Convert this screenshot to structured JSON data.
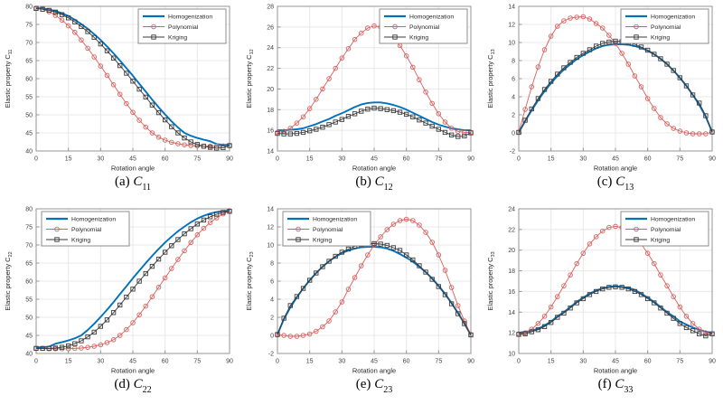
{
  "figure": {
    "xlabel": "Rotation angle",
    "colors": {
      "homogenization": "#0072bd",
      "polynomial": "#d95f5c",
      "kriging": "#3a3a3a",
      "grid": "#e8e8e8",
      "axis": "#949494",
      "tick_text": "#3f3f3f",
      "label_text": "#262626",
      "background": "#ffffff"
    }
  },
  "chart_data": {
    "type": "line",
    "xlabel": "Rotation angle",
    "xlim": [
      0,
      90
    ],
    "xticks": [
      0,
      15,
      30,
      45,
      60,
      75,
      90
    ],
    "series_names": [
      "Homogenization",
      "Polynomial",
      "Kriging"
    ],
    "legend_position_note": "per-chart legend_pos: ne=top-right, nw=top-left",
    "x": [
      0,
      3,
      6,
      9,
      12,
      15,
      18,
      21,
      24,
      27,
      30,
      33,
      36,
      39,
      42,
      45,
      48,
      51,
      54,
      57,
      60,
      63,
      66,
      69,
      72,
      75,
      78,
      81,
      84,
      87,
      90
    ],
    "charts": [
      {
        "caption_prefix": "(a)",
        "caption_symbol": "C",
        "caption_sub": "11",
        "ylabel": "Elastic property C",
        "ylabel_sub": "11",
        "ylim": [
          40,
          80
        ],
        "ytick_step": 5,
        "legend_pos": "ne",
        "homogenization": [
          79.5,
          79.4,
          79.1,
          78.7,
          78.1,
          77.3,
          76.3,
          75.1,
          73.8,
          72.3,
          70.7,
          68.9,
          67.0,
          65.0,
          62.9,
          60.8,
          58.6,
          56.4,
          54.2,
          52.1,
          50.1,
          48.2,
          46.5,
          45.0,
          44.2,
          43.6,
          43.1,
          42.7,
          41.9,
          41.7,
          41.7
        ],
        "polynomial": [
          79.5,
          79.2,
          78.5,
          77.5,
          76.2,
          74.6,
          72.8,
          70.7,
          68.4,
          66.0,
          63.5,
          60.9,
          58.3,
          55.7,
          53.1,
          50.7,
          48.5,
          46.6,
          45.0,
          43.8,
          43.0,
          42.4,
          42.0,
          41.7,
          41.5,
          41.4,
          41.3,
          41.3,
          41.3,
          41.4,
          41.4
        ],
        "kriging": [
          79.4,
          79.2,
          78.9,
          78.4,
          77.7,
          76.8,
          75.7,
          74.4,
          73.0,
          71.4,
          69.6,
          67.7,
          65.7,
          63.6,
          61.5,
          59.3,
          57.1,
          54.9,
          52.7,
          50.6,
          48.6,
          46.7,
          45.0,
          43.6,
          42.5,
          41.8,
          41.3,
          41.0,
          40.8,
          40.9,
          41.5
        ]
      },
      {
        "caption_prefix": "(b)",
        "caption_symbol": "C",
        "caption_sub": "12",
        "ylabel": "Elastic property C",
        "ylabel_sub": "12",
        "ylim": [
          14,
          28
        ],
        "ytick_step": 2,
        "legend_pos": "ne",
        "homogenization": [
          16.0,
          16.0,
          16.05,
          16.1,
          16.2,
          16.4,
          16.6,
          16.85,
          17.1,
          17.4,
          17.65,
          17.95,
          18.25,
          18.5,
          18.65,
          18.7,
          18.7,
          18.6,
          18.45,
          18.25,
          18.0,
          17.7,
          17.4,
          17.1,
          16.8,
          16.55,
          16.35,
          16.2,
          16.1,
          16.0,
          16.0
        ],
        "polynomial": [
          15.8,
          15.9,
          16.2,
          16.7,
          17.3,
          18.1,
          19.0,
          20.0,
          21.0,
          22.0,
          23.0,
          23.9,
          24.8,
          25.4,
          25.9,
          26.1,
          26.0,
          25.6,
          25.0,
          24.2,
          23.2,
          22.1,
          20.9,
          19.7,
          18.6,
          17.6,
          16.8,
          16.2,
          15.9,
          15.8,
          15.8
        ],
        "kriging": [
          15.7,
          15.65,
          15.65,
          15.7,
          15.8,
          15.95,
          16.1,
          16.3,
          16.55,
          16.8,
          17.05,
          17.35,
          17.6,
          17.85,
          18.05,
          18.15,
          18.1,
          18.0,
          17.9,
          17.75,
          17.55,
          17.3,
          17.0,
          16.7,
          16.4,
          16.1,
          15.8,
          15.55,
          15.4,
          15.45,
          15.75
        ]
      },
      {
        "caption_prefix": "(c)",
        "caption_symbol": "C",
        "caption_sub": "13",
        "ylabel": "Elastic property C",
        "ylabel_sub": "13",
        "ylim": [
          -2,
          14
        ],
        "ytick_step": 2,
        "legend_pos": "ne",
        "homogenization": [
          0.05,
          1.3,
          2.5,
          3.6,
          4.6,
          5.5,
          6.3,
          7.0,
          7.6,
          8.15,
          8.6,
          9.0,
          9.35,
          9.6,
          9.75,
          9.8,
          9.8,
          9.75,
          9.6,
          9.4,
          9.1,
          8.7,
          8.2,
          7.6,
          6.9,
          6.1,
          5.2,
          4.2,
          3.1,
          1.8,
          0.1
        ],
        "polynomial": [
          0.1,
          2.6,
          5.1,
          7.3,
          9.2,
          10.7,
          11.8,
          12.4,
          12.7,
          12.8,
          12.85,
          12.6,
          12.1,
          11.6,
          10.8,
          9.9,
          8.8,
          7.6,
          6.3,
          5.1,
          3.8,
          2.7,
          1.7,
          1.0,
          0.5,
          0.2,
          0.0,
          -0.1,
          -0.1,
          -0.1,
          0.1
        ],
        "kriging": [
          0.05,
          1.4,
          2.65,
          3.8,
          4.8,
          5.7,
          6.5,
          7.2,
          7.8,
          8.35,
          8.8,
          9.2,
          9.6,
          9.9,
          10.05,
          10.15,
          10.1,
          10.0,
          9.8,
          9.5,
          9.15,
          8.7,
          8.2,
          7.6,
          6.9,
          6.1,
          5.2,
          4.2,
          3.3,
          1.9,
          0.1
        ]
      },
      {
        "caption_prefix": "(d)",
        "caption_symbol": "C",
        "caption_sub": "22",
        "ylabel": "Elastic property C",
        "ylabel_sub": "22",
        "ylim": [
          40,
          80
        ],
        "ytick_step": 5,
        "legend_pos": "nw",
        "homogenization": [
          41.7,
          41.7,
          41.9,
          42.7,
          43.1,
          43.6,
          44.2,
          45.0,
          46.5,
          48.2,
          50.1,
          52.1,
          54.2,
          56.4,
          58.6,
          60.8,
          62.9,
          65.0,
          67.0,
          68.9,
          70.7,
          72.3,
          73.8,
          75.1,
          76.3,
          77.3,
          78.1,
          78.7,
          79.1,
          79.4,
          79.5
        ],
        "polynomial": [
          41.4,
          41.4,
          41.3,
          41.3,
          41.3,
          41.3,
          41.4,
          41.5,
          41.7,
          42.0,
          42.4,
          43.0,
          43.8,
          45.0,
          46.6,
          48.5,
          50.7,
          53.1,
          55.7,
          58.3,
          60.9,
          63.5,
          66.0,
          68.4,
          70.7,
          72.8,
          74.6,
          76.2,
          77.5,
          78.6,
          79.5
        ],
        "kriging": [
          41.4,
          41.4,
          41.4,
          41.5,
          41.7,
          42.1,
          42.7,
          43.5,
          44.6,
          45.9,
          47.5,
          49.3,
          51.3,
          53.4,
          55.6,
          57.8,
          60.0,
          62.1,
          64.1,
          66.1,
          68.0,
          69.8,
          71.5,
          73.1,
          74.5,
          75.8,
          76.9,
          77.8,
          78.5,
          79.0,
          79.3
        ]
      },
      {
        "caption_prefix": "(e)",
        "caption_symbol": "C",
        "caption_sub": "23",
        "ylabel": "Elastic property C",
        "ylabel_sub": "23",
        "ylim": [
          -2,
          14
        ],
        "ytick_step": 2,
        "legend_pos": "nw",
        "homogenization": [
          0.1,
          1.8,
          3.1,
          4.2,
          5.2,
          6.1,
          6.9,
          7.6,
          8.2,
          8.7,
          9.1,
          9.4,
          9.6,
          9.75,
          9.8,
          9.8,
          9.75,
          9.6,
          9.35,
          9.0,
          8.6,
          8.15,
          7.6,
          7.0,
          6.3,
          5.5,
          4.6,
          3.6,
          2.5,
          1.3,
          0.05
        ],
        "polynomial": [
          0.05,
          0.0,
          -0.1,
          -0.1,
          0.0,
          0.15,
          0.45,
          0.95,
          1.6,
          2.6,
          3.7,
          5.1,
          6.4,
          7.7,
          8.9,
          10.0,
          10.9,
          11.7,
          12.3,
          12.7,
          12.85,
          12.7,
          12.2,
          11.4,
          10.3,
          8.9,
          7.2,
          5.3,
          3.3,
          1.6,
          0.1
        ],
        "kriging": [
          0.1,
          1.9,
          3.3,
          4.3,
          5.2,
          6.1,
          6.9,
          7.6,
          8.2,
          8.75,
          9.2,
          9.55,
          9.85,
          10.05,
          10.15,
          10.15,
          10.1,
          9.95,
          9.7,
          9.4,
          8.9,
          8.35,
          7.7,
          7.0,
          6.2,
          5.4,
          4.5,
          3.5,
          2.4,
          1.3,
          0.05
        ]
      },
      {
        "caption_prefix": "(f)",
        "caption_symbol": "C",
        "caption_sub": "33",
        "ylabel": "Elastic property C",
        "ylabel_sub": "33",
        "ylim": [
          10,
          24
        ],
        "ytick_step": 2,
        "legend_pos": "ne",
        "homogenization": [
          12.0,
          12.1,
          12.2,
          12.4,
          12.7,
          13.1,
          13.6,
          14.0,
          14.5,
          15.0,
          15.4,
          15.8,
          16.1,
          16.3,
          16.45,
          16.5,
          16.45,
          16.35,
          16.15,
          15.8,
          15.4,
          15.0,
          14.5,
          14.0,
          13.6,
          13.1,
          12.8,
          12.5,
          12.3,
          12.1,
          12.0
        ],
        "polynomial": [
          11.9,
          12.0,
          12.35,
          12.9,
          13.6,
          14.5,
          15.5,
          16.55,
          17.6,
          18.7,
          19.7,
          20.6,
          21.3,
          21.85,
          22.2,
          22.3,
          22.2,
          21.85,
          21.3,
          20.6,
          19.7,
          18.7,
          17.6,
          16.55,
          15.5,
          14.5,
          13.6,
          12.9,
          12.35,
          12.0,
          11.9
        ],
        "kriging": [
          11.85,
          11.9,
          12.1,
          12.3,
          12.6,
          13.0,
          13.5,
          13.9,
          14.4,
          14.9,
          15.3,
          15.7,
          16.0,
          16.25,
          16.4,
          16.45,
          16.4,
          16.25,
          16.0,
          15.7,
          15.3,
          14.9,
          14.4,
          13.9,
          13.4,
          12.9,
          12.5,
          12.2,
          11.9,
          11.7,
          11.9
        ]
      }
    ]
  }
}
